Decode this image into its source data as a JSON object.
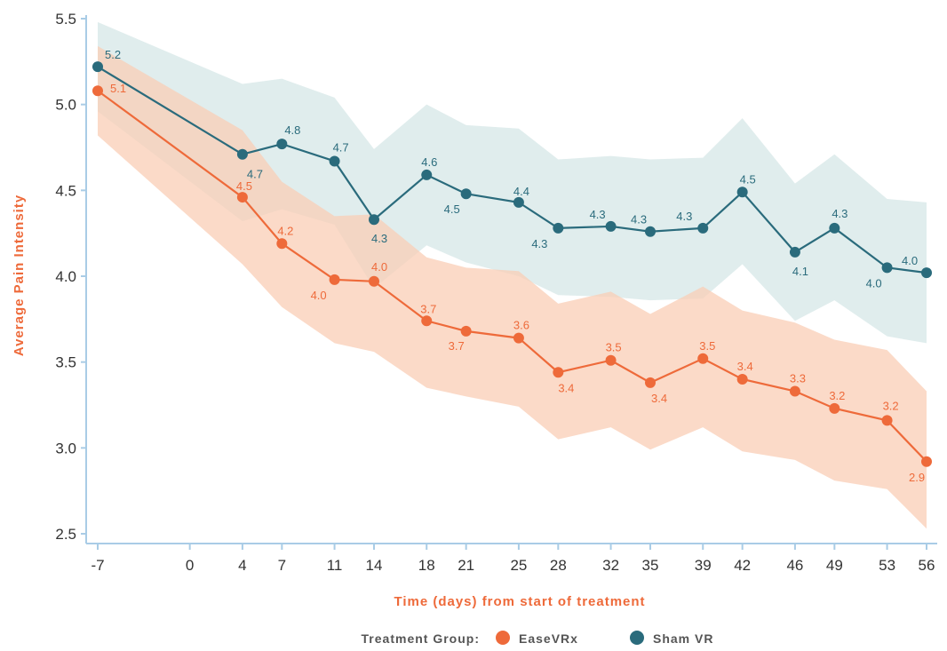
{
  "chart_data": {
    "type": "line",
    "title": "",
    "xlabel": "Time (days) from start of treatment",
    "ylabel": "Average Pain Intensity",
    "xlim": [
      -7,
      56
    ],
    "ylim": [
      2.5,
      5.5
    ],
    "x_ticks": [
      -7,
      0,
      4,
      7,
      11,
      14,
      18,
      21,
      25,
      28,
      32,
      35,
      39,
      42,
      46,
      49,
      53,
      56
    ],
    "y_ticks": [
      2.5,
      3.0,
      3.5,
      4.0,
      4.5,
      5.0,
      5.5
    ],
    "grid": false,
    "legend_position": "bottom",
    "legend_title": "Treatment Group:",
    "x": [
      -7,
      4,
      7,
      11,
      14,
      18,
      21,
      25,
      28,
      32,
      35,
      39,
      42,
      46,
      49,
      53,
      56
    ],
    "series": [
      {
        "name": "EaseVRx",
        "color": "#ee6a3a",
        "band_color": "#f9cdb6",
        "values": [
          5.08,
          4.46,
          4.19,
          3.98,
          3.97,
          3.74,
          3.68,
          3.64,
          3.44,
          3.51,
          3.38,
          3.52,
          3.4,
          3.33,
          3.23,
          3.16,
          2.92
        ],
        "labels": [
          "5.1",
          "4.5",
          "4.2",
          "4.0",
          "4.0",
          "3.7",
          "3.7",
          "3.6",
          "3.4",
          "3.5",
          "3.4",
          "3.5",
          "3.4",
          "3.3",
          "3.2",
          "3.2",
          "2.9"
        ],
        "upper": [
          5.34,
          4.85,
          4.55,
          4.35,
          4.36,
          4.11,
          4.05,
          4.03,
          3.84,
          3.91,
          3.78,
          3.94,
          3.8,
          3.73,
          3.63,
          3.57,
          3.33
        ],
        "lower": [
          4.82,
          4.07,
          3.82,
          3.61,
          3.56,
          3.35,
          3.3,
          3.24,
          3.05,
          3.12,
          2.99,
          3.12,
          2.98,
          2.93,
          2.81,
          2.76,
          2.53
        ]
      },
      {
        "name": "Sham VR",
        "color": "#2a6b7c",
        "band_color": "#d6e7e7",
        "values": [
          5.22,
          4.71,
          4.77,
          4.67,
          4.33,
          4.59,
          4.48,
          4.43,
          4.28,
          4.29,
          4.26,
          4.28,
          4.49,
          4.14,
          4.28,
          4.05,
          4.02
        ],
        "labels": [
          "5.2",
          "4.7",
          "4.8",
          "4.7",
          "4.3",
          "4.6",
          "4.5",
          "4.4",
          "4.3",
          "4.3",
          "4.3",
          "4.3",
          "4.5",
          "4.1",
          "4.3",
          "4.0",
          "4.0"
        ],
        "upper": [
          5.48,
          5.12,
          5.15,
          5.04,
          4.74,
          5.0,
          4.88,
          4.86,
          4.68,
          4.7,
          4.68,
          4.69,
          4.92,
          4.54,
          4.71,
          4.45,
          4.43
        ],
        "lower": [
          4.96,
          4.32,
          4.39,
          4.3,
          3.93,
          4.18,
          4.08,
          4.0,
          3.89,
          3.88,
          3.86,
          3.87,
          4.07,
          3.74,
          3.86,
          3.65,
          3.61
        ]
      }
    ]
  }
}
